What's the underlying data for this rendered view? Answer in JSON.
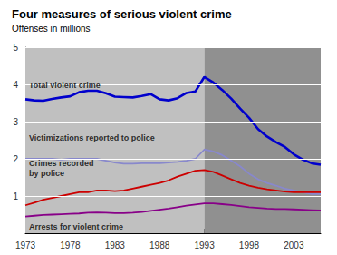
{
  "chart_data": {
    "type": "line",
    "title": "Four measures of serious violent crime",
    "subtitle": "Offenses in millions",
    "x": [
      1973,
      1974,
      1975,
      1976,
      1977,
      1978,
      1979,
      1980,
      1981,
      1982,
      1983,
      1984,
      1985,
      1986,
      1987,
      1988,
      1989,
      1990,
      1991,
      1992,
      1993,
      1994,
      1995,
      1996,
      1997,
      1998,
      1999,
      2000,
      2001,
      2002,
      2003,
      2004,
      2005,
      2006
    ],
    "series": [
      {
        "color": "#0000cc",
        "values": [
          3.6,
          3.57,
          3.56,
          3.61,
          3.65,
          3.68,
          3.79,
          3.83,
          3.83,
          3.76,
          3.67,
          3.66,
          3.65,
          3.69,
          3.74,
          3.6,
          3.57,
          3.63,
          3.77,
          3.81,
          4.2,
          4.05,
          3.85,
          3.62,
          3.35,
          3.1,
          2.8,
          2.6,
          2.45,
          2.32,
          2.12,
          1.98,
          1.88,
          1.84
        ]
      },
      {
        "color": "#8888cc",
        "values": [
          2.0,
          2.0,
          2.0,
          2.0,
          1.98,
          2.0,
          2.0,
          2.0,
          2.0,
          1.95,
          1.9,
          1.87,
          1.87,
          1.88,
          1.88,
          1.88,
          1.9,
          1.92,
          1.95,
          2.0,
          2.25,
          2.2,
          2.1,
          1.95,
          1.8,
          1.6,
          1.45,
          1.35,
          1.28,
          1.2,
          1.15,
          1.1,
          1.05,
          1.05
        ]
      },
      {
        "color": "#cc0000",
        "values": [
          0.75,
          0.82,
          0.9,
          0.95,
          1.0,
          1.05,
          1.1,
          1.1,
          1.15,
          1.15,
          1.13,
          1.15,
          1.2,
          1.25,
          1.3,
          1.35,
          1.42,
          1.52,
          1.6,
          1.68,
          1.7,
          1.65,
          1.55,
          1.45,
          1.35,
          1.28,
          1.22,
          1.18,
          1.15,
          1.12,
          1.1,
          1.1,
          1.1,
          1.1
        ]
      },
      {
        "color": "#880088",
        "values": [
          0.45,
          0.47,
          0.49,
          0.5,
          0.51,
          0.52,
          0.53,
          0.55,
          0.56,
          0.55,
          0.54,
          0.54,
          0.55,
          0.57,
          0.6,
          0.63,
          0.66,
          0.7,
          0.74,
          0.77,
          0.8,
          0.8,
          0.78,
          0.76,
          0.73,
          0.7,
          0.68,
          0.66,
          0.65,
          0.65,
          0.64,
          0.63,
          0.62,
          0.61
        ]
      }
    ],
    "xlim": [
      1973,
      2006
    ],
    "xticks": [
      1973,
      1978,
      1983,
      1988,
      1993,
      1998,
      2003
    ],
    "ylim": [
      0,
      5
    ],
    "yticks": [
      1,
      2,
      3,
      4,
      5
    ],
    "grid": true,
    "spans": [
      {
        "from": 1973,
        "to": 1993,
        "color": "#c0c0c0"
      },
      {
        "from": 1993,
        "to": 2006,
        "color": "#909090"
      }
    ],
    "annotations": [
      {
        "text": "Total violent crime",
        "x": 1973.4,
        "y": 3.85
      },
      {
        "text": "Victimizations reported to police",
        "x": 1973.4,
        "y": 2.42
      },
      {
        "text": "Crimes recorded\nby police",
        "x": 1973.4,
        "y": 1.48
      },
      {
        "text": "Arrests for violent crime",
        "x": 1973.4,
        "y": 0.03
      }
    ]
  }
}
